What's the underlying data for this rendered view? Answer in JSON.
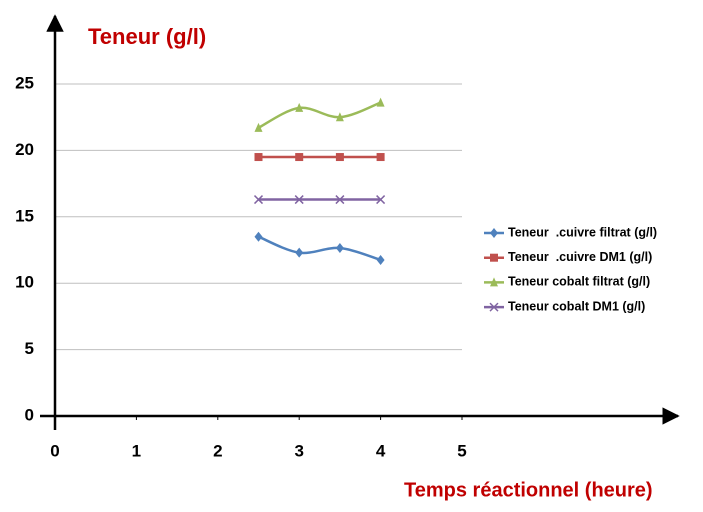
{
  "chart_data": {
    "type": "line",
    "title": "Teneur (g/l)",
    "x_label": "Temps réactionnel  (heure)",
    "series": [
      {
        "name": "Teneur  .cuivre filtrat (g/l)",
        "color": "#4f81bd",
        "marker": "diamond",
        "x": [
          2.5,
          3,
          3.5,
          4
        ],
        "values": [
          13.5,
          12.3,
          12.65,
          11.75
        ]
      },
      {
        "name": "Teneur  .cuivre DM1 (g/l)",
        "color": "#c0504d",
        "marker": "square",
        "x": [
          2.5,
          3,
          3.5,
          4
        ],
        "values": [
          19.5,
          19.5,
          19.5,
          19.5
        ]
      },
      {
        "name": "Teneur cobalt filtrat (g/l)",
        "color": "#9bbb59",
        "marker": "triangle",
        "x": [
          2.5,
          3,
          3.5,
          4
        ],
        "values": [
          21.7,
          23.2,
          22.5,
          23.6
        ]
      },
      {
        "name": "Teneur cobalt DM1 (g/l)",
        "color": "#8064a2",
        "marker": "x",
        "x": [
          2.5,
          3,
          3.5,
          4
        ],
        "values": [
          16.3,
          16.3,
          16.3,
          16.3
        ]
      }
    ],
    "xlim": [
      0,
      5
    ],
    "xticks": [
      0,
      1,
      2,
      3,
      4,
      5
    ],
    "ylim": [
      0,
      25
    ],
    "yticks": [
      0,
      5,
      10,
      15,
      20,
      25
    ],
    "grid": true,
    "legend": "right"
  }
}
